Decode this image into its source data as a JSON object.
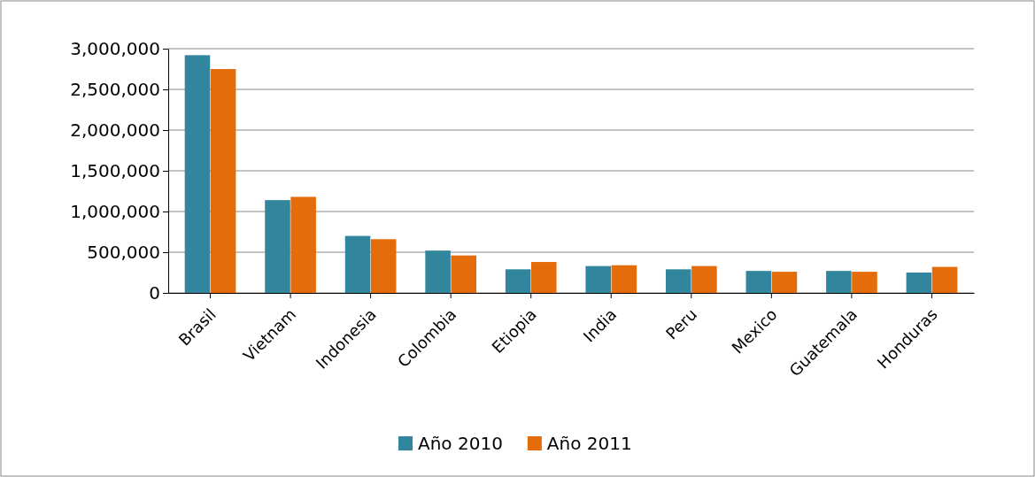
{
  "chart_data": {
    "type": "bar",
    "categories": [
      "Brasil",
      "Vietnam",
      "Indonesia",
      "Colombia",
      "Etiopia",
      "India",
      "Peru",
      "Mexico",
      "Guatemala",
      "Honduras"
    ],
    "series": [
      {
        "name": "Año 2010",
        "color": "#31859c",
        "values": [
          2920000,
          1140000,
          700000,
          520000,
          290000,
          330000,
          290000,
          270000,
          270000,
          250000
        ]
      },
      {
        "name": "Año 2011",
        "color": "#e46c0a",
        "values": [
          2750000,
          1180000,
          660000,
          460000,
          380000,
          340000,
          330000,
          260000,
          260000,
          320000
        ]
      }
    ],
    "ylim": [
      0,
      3000000
    ],
    "yticks": [
      {
        "value": 0,
        "label": "0"
      },
      {
        "value": 500000,
        "label": "500,000"
      },
      {
        "value": 1000000,
        "label": "1,000,000"
      },
      {
        "value": 1500000,
        "label": "1,500,000"
      },
      {
        "value": 2000000,
        "label": "2,000,000"
      },
      {
        "value": 2500000,
        "label": "2,500,000"
      },
      {
        "value": 3000000,
        "label": "3,000,000"
      }
    ],
    "grid": "y",
    "legend": "bottom"
  }
}
